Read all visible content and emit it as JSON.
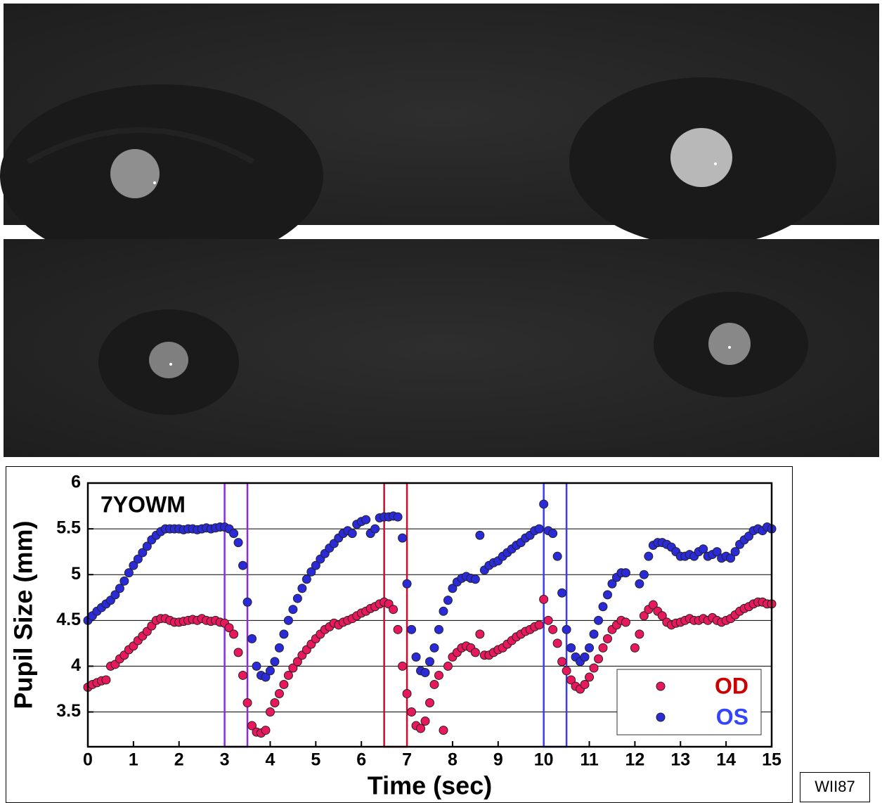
{
  "chart_data": {
    "type": "scatter",
    "annotation": "7YOWM",
    "xlabel": "Time (sec)",
    "ylabel": "Pupil Size (mm)",
    "footer_label": "WII87",
    "xlim": [
      0,
      15
    ],
    "ylim": [
      3.12,
      6
    ],
    "xticks": [
      0,
      1,
      2,
      3,
      4,
      5,
      6,
      7,
      8,
      9,
      10,
      11,
      12,
      13,
      14,
      15
    ],
    "yticks": [
      3.5,
      4,
      4.5,
      5,
      5.5,
      6
    ],
    "grid": true,
    "legend": "lower right",
    "highlights": [
      {
        "start": 3,
        "end": 3.5,
        "color": "#8a2be2"
      },
      {
        "start": 6.5,
        "end": 7,
        "color": "#c8102e"
      },
      {
        "start": 10,
        "end": 10.5,
        "color": "#3a3aff"
      }
    ],
    "x": [
      0,
      0.1,
      0.2,
      0.3,
      0.4,
      0.5,
      0.6,
      0.7,
      0.8,
      0.9,
      1,
      1.1,
      1.2,
      1.3,
      1.4,
      1.5,
      1.6,
      1.7,
      1.8,
      1.9,
      2,
      2.1,
      2.2,
      2.3,
      2.4,
      2.5,
      2.6,
      2.7,
      2.8,
      2.9,
      3,
      3.1,
      3.2,
      3.3,
      3.4,
      3.5,
      3.6,
      3.7,
      3.8,
      3.9,
      4,
      4.1,
      4.2,
      4.3,
      4.4,
      4.5,
      4.6,
      4.7,
      4.8,
      4.9,
      5,
      5.1,
      5.2,
      5.3,
      5.4,
      5.5,
      5.6,
      5.7,
      5.8,
      5.9,
      6,
      6.1,
      6.2,
      6.3,
      6.4,
      6.5,
      6.6,
      6.7,
      6.8,
      6.9,
      7,
      7.1,
      7.2,
      7.3,
      7.4,
      7.5,
      7.6,
      7.7,
      7.8,
      7.9,
      8,
      8.1,
      8.2,
      8.3,
      8.4,
      8.5,
      8.6,
      8.7,
      8.8,
      8.9,
      9,
      9.1,
      9.2,
      9.3,
      9.4,
      9.5,
      9.6,
      9.7,
      9.8,
      9.9,
      10,
      10.1,
      10.2,
      10.3,
      10.4,
      10.5,
      10.6,
      10.7,
      10.8,
      10.9,
      11,
      11.1,
      11.2,
      11.3,
      11.4,
      11.5,
      11.6,
      11.7,
      11.8,
      11.9,
      12,
      12.1,
      12.2,
      12.3,
      12.4,
      12.5,
      12.6,
      12.7,
      12.8,
      12.9,
      13,
      13.1,
      13.2,
      13.3,
      13.4,
      13.5,
      13.6,
      13.7,
      13.8,
      13.9,
      14,
      14.1,
      14.2,
      14.3,
      14.4,
      14.5,
      14.6,
      14.7,
      14.8,
      14.9,
      15
    ],
    "series": [
      {
        "name": "OD",
        "color": "#e8185c",
        "label_color": "#cc0000",
        "values": [
          3.77,
          3.8,
          3.82,
          3.84,
          3.85,
          4.0,
          4.02,
          4.08,
          4.12,
          4.18,
          4.22,
          4.28,
          4.33,
          4.38,
          4.44,
          4.5,
          4.52,
          4.52,
          4.5,
          4.48,
          4.48,
          4.49,
          4.5,
          4.51,
          4.5,
          4.52,
          4.5,
          4.49,
          4.5,
          4.48,
          4.47,
          4.42,
          4.35,
          4.15,
          3.9,
          3.6,
          3.35,
          3.28,
          3.27,
          3.3,
          3.5,
          3.6,
          3.7,
          3.8,
          3.9,
          3.98,
          4.05,
          4.12,
          4.18,
          4.24,
          4.3,
          4.35,
          4.4,
          4.43,
          4.47,
          4.45,
          4.48,
          4.5,
          4.52,
          4.55,
          4.58,
          4.6,
          4.63,
          4.65,
          4.68,
          4.7,
          4.68,
          4.62,
          4.4,
          4.0,
          3.7,
          3.5,
          3.35,
          3.32,
          3.4,
          3.6,
          3.8,
          3.9,
          3.3,
          4.0,
          4.1,
          4.15,
          4.2,
          4.22,
          4.2,
          4.15,
          4.35,
          4.12,
          4.12,
          4.15,
          4.18,
          4.2,
          4.24,
          4.28,
          4.32,
          4.35,
          4.38,
          4.4,
          4.43,
          4.45,
          4.73,
          4.5,
          4.4,
          4.25,
          4.05,
          3.95,
          3.85,
          3.78,
          3.75,
          3.8,
          3.88,
          3.98,
          4.08,
          4.2,
          4.3,
          4.4,
          4.45,
          4.5,
          4.48,
          null,
          4.2,
          4.35,
          4.55,
          4.62,
          4.67,
          4.6,
          4.55,
          4.48,
          4.45,
          4.47,
          4.48,
          4.5,
          4.52,
          4.5,
          4.5,
          4.52,
          4.5,
          4.53,
          4.5,
          4.48,
          4.5,
          4.52,
          4.56,
          4.6,
          4.63,
          4.65,
          4.68,
          4.7,
          4.7,
          4.68,
          4.68
        ]
      },
      {
        "name": "OS",
        "color": "#2a2ad8",
        "label_color": "#3344ff",
        "values": [
          4.5,
          4.55,
          4.6,
          4.64,
          4.68,
          4.72,
          4.78,
          4.85,
          4.93,
          5.02,
          5.1,
          5.17,
          5.24,
          5.31,
          5.38,
          5.43,
          5.47,
          5.5,
          5.5,
          5.5,
          5.5,
          5.49,
          5.5,
          5.5,
          5.49,
          5.5,
          5.51,
          5.5,
          5.51,
          5.52,
          5.52,
          5.5,
          5.45,
          5.35,
          5.1,
          4.7,
          4.3,
          4.0,
          3.9,
          3.88,
          3.95,
          4.05,
          4.2,
          4.35,
          4.5,
          4.62,
          4.74,
          4.85,
          4.95,
          5.03,
          5.1,
          5.17,
          5.23,
          5.29,
          5.34,
          5.4,
          5.45,
          5.48,
          5.45,
          5.55,
          5.58,
          5.6,
          5.45,
          5.5,
          5.62,
          5.63,
          5.63,
          5.64,
          5.63,
          5.4,
          4.9,
          4.4,
          4.1,
          3.95,
          3.93,
          4.05,
          4.2,
          4.4,
          4.6,
          4.72,
          4.85,
          4.92,
          4.96,
          4.98,
          4.96,
          4.95,
          5.43,
          5.05,
          5.1,
          5.13,
          5.15,
          5.2,
          5.24,
          5.28,
          5.32,
          5.35,
          5.4,
          5.43,
          5.48,
          5.5,
          5.77,
          5.48,
          5.45,
          5.2,
          4.8,
          4.4,
          4.2,
          4.1,
          4.05,
          4.1,
          4.2,
          4.35,
          4.5,
          4.65,
          4.78,
          4.9,
          4.97,
          5.02,
          5.02,
          null,
          null,
          4.9,
          5.0,
          5.2,
          5.32,
          5.35,
          5.35,
          5.33,
          5.3,
          5.25,
          5.2,
          5.2,
          5.22,
          5.2,
          5.25,
          5.28,
          5.2,
          5.22,
          5.25,
          5.18,
          5.2,
          5.18,
          5.25,
          5.33,
          5.38,
          5.42,
          5.48,
          5.5,
          5.48,
          5.52,
          5.5
        ]
      }
    ]
  }
}
